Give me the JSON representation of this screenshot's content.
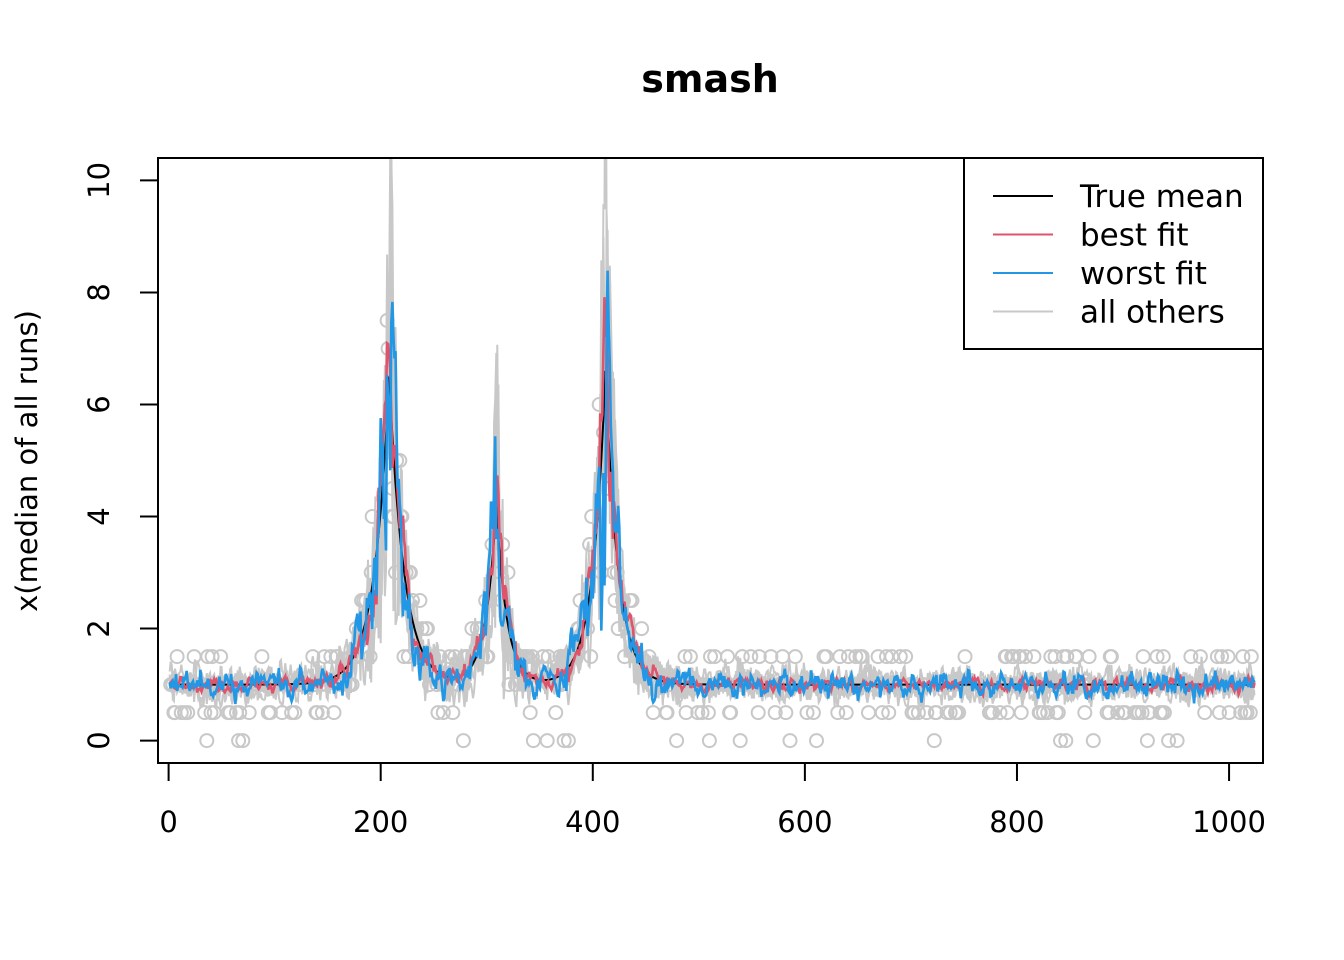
{
  "chart_data": {
    "type": "line",
    "title": "smash",
    "xlabel": "",
    "ylabel": "x(median of all runs)",
    "xlim": [
      -10,
      1032
    ],
    "ylim": [
      -0.4,
      10.4
    ],
    "x_ticks": [
      0,
      200,
      400,
      600,
      800,
      1000
    ],
    "y_ticks": [
      0,
      2,
      4,
      6,
      8,
      10
    ],
    "x_tick_labels": [
      "0",
      "200",
      "400",
      "600",
      "800",
      "1000"
    ],
    "y_tick_labels": [
      "0",
      "2",
      "4",
      "6",
      "8",
      "10"
    ],
    "n_points": 1024,
    "peaks": [
      {
        "center": 207,
        "height": 5.5,
        "width": 14
      },
      {
        "center": 308,
        "height": 3.2,
        "width": 10
      },
      {
        "center": 411,
        "height": 5.6,
        "width": 12
      }
    ],
    "baseline": 1.0,
    "legend": {
      "position": "top-right",
      "entries": [
        {
          "label": "True mean",
          "color": "#000000"
        },
        {
          "label": "best fit",
          "color": "#DF536B"
        },
        {
          "label": "worst fit",
          "color": "#2297E6"
        },
        {
          "label": "all others",
          "color": "#C8C8C8"
        }
      ]
    },
    "series": [
      {
        "name": "all others",
        "color": "#C8C8C8",
        "count": 6
      },
      {
        "name": "True mean",
        "color": "#000000"
      },
      {
        "name": "best fit",
        "color": "#DF536B"
      },
      {
        "name": "worst fit",
        "color": "#2297E6"
      }
    ],
    "observations": {
      "style": "open-circle",
      "color": "#C8C8C8",
      "step": 0.5
    }
  }
}
